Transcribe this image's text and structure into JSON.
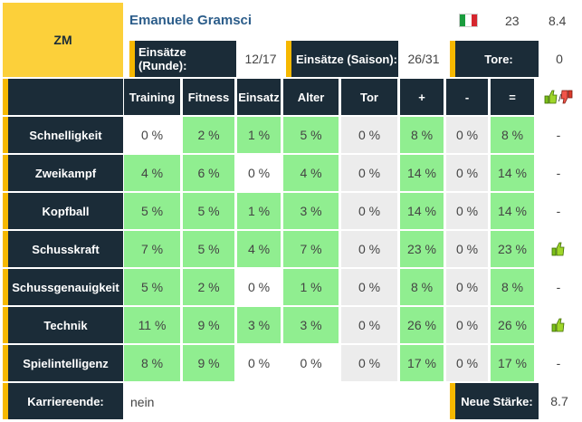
{
  "player": {
    "position": "ZM",
    "name": "Emanuele Gramsci",
    "nationality_flag": "italy-flag",
    "age": "23",
    "rating": "8.4"
  },
  "stats": {
    "runde_label": "Einsätze (Runde):",
    "runde_value": "12/17",
    "saison_label": "Einsätze (Saison):",
    "saison_value": "26/31",
    "tore_label": "Tore:",
    "tore_value": "0"
  },
  "table": {
    "columns": [
      "Training",
      "Fitness",
      "Einsatz",
      "Alter",
      "Tor",
      "+",
      "-",
      "="
    ],
    "rows": [
      {
        "label": "Schnelligkeit",
        "values": [
          "0 %",
          "2 %",
          "1 %",
          "5 %",
          "0 %",
          "8 %",
          "0 %",
          "8 %"
        ],
        "icon": "-"
      },
      {
        "label": "Zweikampf",
        "values": [
          "4 %",
          "6 %",
          "0 %",
          "4 %",
          "0 %",
          "14 %",
          "0 %",
          "14 %"
        ],
        "icon": "-"
      },
      {
        "label": "Kopfball",
        "values": [
          "5 %",
          "5 %",
          "1 %",
          "3 %",
          "0 %",
          "14 %",
          "0 %",
          "14 %"
        ],
        "icon": "-"
      },
      {
        "label": "Schusskraft",
        "values": [
          "7 %",
          "5 %",
          "4 %",
          "7 %",
          "0 %",
          "23 %",
          "0 %",
          "23 %"
        ],
        "icon": "thumbs-up"
      },
      {
        "label": "Schussgenauigkeit",
        "values": [
          "5 %",
          "2 %",
          "0 %",
          "1 %",
          "0 %",
          "8 %",
          "0 %",
          "8 %"
        ],
        "icon": "-"
      },
      {
        "label": "Technik",
        "values": [
          "11 %",
          "9 %",
          "3 %",
          "3 %",
          "0 %",
          "26 %",
          "0 %",
          "26 %"
        ],
        "icon": "thumbs-up"
      },
      {
        "label": "Spielintelligenz",
        "values": [
          "8 %",
          "9 %",
          "0 %",
          "0 %",
          "0 %",
          "17 %",
          "0 %",
          "17 %"
        ],
        "icon": "-"
      }
    ]
  },
  "footer": {
    "karriere_label": "Karriereende:",
    "karriere_value": "nein",
    "staerke_label": "Neue Stärke:",
    "staerke_value": "8.7"
  },
  "colors": {
    "dark": "#1b2c38",
    "accent": "#f6b800",
    "badge": "#fcd03a",
    "green": "#90ee90",
    "grey": "#ececec",
    "name": "#2c5d8a"
  }
}
